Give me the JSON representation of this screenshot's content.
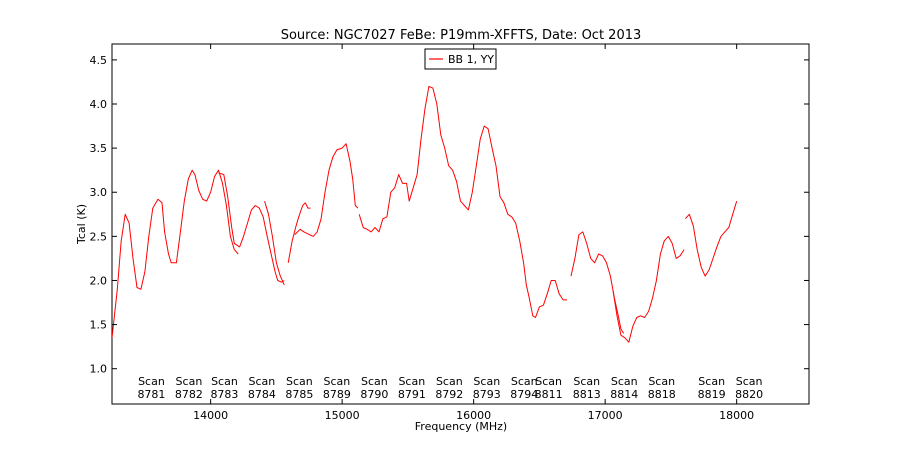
{
  "chart_data": {
    "type": "line",
    "title": "Source: NGC7027 FeBe: P19mm-XFFTS, Date: Oct 2013",
    "xlabel": "Frequency (MHz)",
    "ylabel": "Tcal (K)",
    "xlim": [
      13250,
      18550
    ],
    "ylim": [
      0.6,
      4.68
    ],
    "grid": false,
    "legend": "top-center",
    "series": [
      {
        "name": "BB 1, YY",
        "color": "#ff0000",
        "segments": [
          [
            [
              13250,
              1.35
            ],
            [
              13290,
              1.9
            ],
            [
              13320,
              2.45
            ],
            [
              13350,
              2.75
            ],
            [
              13380,
              2.65
            ],
            [
              13410,
              2.25
            ],
            [
              13440,
              1.92
            ],
            [
              13470,
              1.9
            ],
            [
              13500,
              2.1
            ],
            [
              13530,
              2.5
            ],
            [
              13560,
              2.82
            ],
            [
              13600,
              2.92
            ],
            [
              13630,
              2.88
            ],
            [
              13650,
              2.55
            ],
            [
              13680,
              2.3
            ],
            [
              13700,
              2.2
            ],
            [
              13740,
              2.2
            ],
            [
              13770,
              2.55
            ],
            [
              13800,
              2.9
            ],
            [
              13830,
              3.15
            ],
            [
              13860,
              3.25
            ],
            [
              13880,
              3.2
            ],
            [
              13910,
              3.02
            ],
            [
              13940,
              2.92
            ],
            [
              13970,
              2.9
            ],
            [
              14000,
              3.0
            ],
            [
              14030,
              3.18
            ],
            [
              14060,
              3.25
            ],
            [
              14090,
              3.1
            ],
            [
              14120,
              2.85
            ],
            [
              14150,
              2.5
            ],
            [
              14180,
              2.35
            ],
            [
              14210,
              2.3
            ]
          ],
          [
            [
              14060,
              3.22
            ],
            [
              14100,
              3.2
            ],
            [
              14130,
              2.95
            ],
            [
              14160,
              2.6
            ],
            [
              14180,
              2.42
            ],
            [
              14220,
              2.38
            ],
            [
              14250,
              2.5
            ],
            [
              14280,
              2.65
            ],
            [
              14310,
              2.8
            ],
            [
              14340,
              2.85
            ],
            [
              14370,
              2.82
            ],
            [
              14400,
              2.72
            ],
            [
              14430,
              2.5
            ],
            [
              14460,
              2.3
            ],
            [
              14490,
              2.1
            ],
            [
              14510,
              2.0
            ],
            [
              14540,
              1.98
            ],
            [
              14560,
              2.0
            ]
          ],
          [
            [
              14410,
              2.9
            ],
            [
              14440,
              2.75
            ],
            [
              14470,
              2.5
            ],
            [
              14500,
              2.2
            ],
            [
              14530,
              2.05
            ],
            [
              14560,
              1.95
            ]
          ],
          [
            [
              14590,
              2.2
            ],
            [
              14620,
              2.45
            ],
            [
              14650,
              2.62
            ],
            [
              14670,
              2.72
            ],
            [
              14700,
              2.85
            ],
            [
              14720,
              2.88
            ],
            [
              14740,
              2.82
            ],
            [
              14760,
              2.82
            ]
          ],
          [
            [
              14640,
              2.52
            ],
            [
              14680,
              2.58
            ],
            [
              14710,
              2.55
            ],
            [
              14750,
              2.52
            ],
            [
              14780,
              2.5
            ],
            [
              14810,
              2.55
            ],
            [
              14840,
              2.7
            ],
            [
              14870,
              3.0
            ],
            [
              14900,
              3.25
            ],
            [
              14930,
              3.4
            ],
            [
              14960,
              3.48
            ],
            [
              15000,
              3.5
            ],
            [
              15030,
              3.55
            ],
            [
              15060,
              3.35
            ],
            [
              15080,
              3.15
            ],
            [
              15100,
              2.85
            ],
            [
              15120,
              2.82
            ]
          ],
          [
            [
              15130,
              2.75
            ],
            [
              15160,
              2.6
            ],
            [
              15190,
              2.58
            ],
            [
              15220,
              2.55
            ],
            [
              15250,
              2.6
            ],
            [
              15280,
              2.55
            ],
            [
              15310,
              2.7
            ],
            [
              15340,
              2.72
            ],
            [
              15370,
              3.0
            ],
            [
              15400,
              3.05
            ],
            [
              15430,
              3.2
            ],
            [
              15460,
              3.1
            ],
            [
              15490,
              3.1
            ],
            [
              15510,
              2.9
            ],
            [
              15540,
              3.05
            ],
            [
              15570,
              3.2
            ],
            [
              15600,
              3.6
            ],
            [
              15630,
              3.95
            ],
            [
              15660,
              4.2
            ],
            [
              15690,
              4.18
            ],
            [
              15720,
              4.0
            ],
            [
              15750,
              3.65
            ],
            [
              15780,
              3.5
            ],
            [
              15810,
              3.3
            ],
            [
              15840,
              3.25
            ],
            [
              15870,
              3.12
            ],
            [
              15900,
              2.9
            ],
            [
              15930,
              2.85
            ],
            [
              15960,
              2.8
            ],
            [
              15990,
              3.0
            ],
            [
              16020,
              3.3
            ],
            [
              16050,
              3.6
            ],
            [
              16080,
              3.75
            ],
            [
              16110,
              3.72
            ],
            [
              16140,
              3.5
            ],
            [
              16170,
              3.3
            ],
            [
              16200,
              2.95
            ],
            [
              16230,
              2.88
            ],
            [
              16260,
              2.75
            ],
            [
              16290,
              2.72
            ],
            [
              16320,
              2.65
            ],
            [
              16350,
              2.45
            ],
            [
              16380,
              2.2
            ],
            [
              16400,
              1.95
            ],
            [
              16420,
              1.82
            ],
            [
              16450,
              1.6
            ],
            [
              16470,
              1.58
            ],
            [
              16500,
              1.7
            ],
            [
              16530,
              1.72
            ],
            [
              16560,
              1.85
            ],
            [
              16590,
              2.0
            ],
            [
              16620,
              2.0
            ],
            [
              16650,
              1.85
            ],
            [
              16680,
              1.78
            ],
            [
              16710,
              1.78
            ]
          ],
          [
            [
              16740,
              2.05
            ],
            [
              16770,
              2.25
            ],
            [
              16800,
              2.52
            ],
            [
              16830,
              2.55
            ],
            [
              16860,
              2.42
            ],
            [
              16890,
              2.25
            ],
            [
              16920,
              2.2
            ],
            [
              16950,
              2.3
            ],
            [
              16980,
              2.28
            ],
            [
              17010,
              2.2
            ],
            [
              17040,
              2.05
            ],
            [
              17070,
              1.8
            ],
            [
              17100,
              1.6
            ],
            [
              17120,
              1.45
            ],
            [
              17140,
              1.4
            ]
          ],
          [
            [
              17060,
              1.88
            ],
            [
              17090,
              1.6
            ],
            [
              17120,
              1.38
            ],
            [
              17150,
              1.35
            ],
            [
              17180,
              1.3
            ],
            [
              17210,
              1.48
            ],
            [
              17240,
              1.58
            ],
            [
              17270,
              1.6
            ],
            [
              17300,
              1.58
            ],
            [
              17330,
              1.65
            ],
            [
              17360,
              1.8
            ],
            [
              17390,
              2.0
            ],
            [
              17420,
              2.3
            ],
            [
              17450,
              2.45
            ],
            [
              17480,
              2.5
            ],
            [
              17510,
              2.42
            ],
            [
              17540,
              2.25
            ],
            [
              17570,
              2.28
            ],
            [
              17600,
              2.35
            ]
          ],
          [
            [
              17610,
              2.7
            ],
            [
              17640,
              2.75
            ],
            [
              17670,
              2.62
            ],
            [
              17700,
              2.35
            ],
            [
              17730,
              2.15
            ],
            [
              17760,
              2.05
            ],
            [
              17790,
              2.12
            ],
            [
              17820,
              2.25
            ],
            [
              17850,
              2.38
            ],
            [
              17880,
              2.5
            ],
            [
              17910,
              2.55
            ],
            [
              17940,
              2.6
            ],
            [
              17970,
              2.75
            ],
            [
              18000,
              2.9
            ]
          ]
        ]
      }
    ],
    "xticks": [
      14000,
      15000,
      16000,
      17000,
      18000
    ],
    "xticklabels": [
      "14000",
      "15000",
      "16000",
      "17000",
      "18000"
    ],
    "yticks": [
      1.0,
      1.5,
      2.0,
      2.5,
      3.0,
      3.5,
      4.0,
      4.5
    ],
    "yticklabels": [
      "1.0",
      "1.5",
      "2.0",
      "2.5",
      "3.0",
      "3.5",
      "4.0",
      "4.5"
    ],
    "annotations": [
      {
        "x": 13550,
        "line1": "Scan",
        "line2": "8781"
      },
      {
        "x": 13835,
        "line1": "Scan",
        "line2": "8782"
      },
      {
        "x": 14105,
        "line1": "Scan",
        "line2": "8783"
      },
      {
        "x": 14390,
        "line1": "Scan",
        "line2": "8784"
      },
      {
        "x": 14675,
        "line1": "Scan",
        "line2": "8785"
      },
      {
        "x": 14960,
        "line1": "Scan",
        "line2": "8789"
      },
      {
        "x": 15245,
        "line1": "Scan",
        "line2": "8790"
      },
      {
        "x": 15530,
        "line1": "Scan",
        "line2": "8791"
      },
      {
        "x": 15815,
        "line1": "Scan",
        "line2": "8792"
      },
      {
        "x": 16100,
        "line1": "Scan",
        "line2": "8793"
      },
      {
        "x": 16385,
        "line1": "Scan",
        "line2": "8794"
      },
      {
        "x": 16570,
        "line1": "Scan",
        "line2": "8811"
      },
      {
        "x": 16860,
        "line1": "Scan",
        "line2": "8813"
      },
      {
        "x": 17145,
        "line1": "Scan",
        "line2": "8814"
      },
      {
        "x": 17430,
        "line1": "Scan",
        "line2": "8818"
      },
      {
        "x": 17810,
        "line1": "Scan",
        "line2": "8819"
      },
      {
        "x": 18095,
        "line1": "Scan",
        "line2": "8820"
      }
    ]
  }
}
